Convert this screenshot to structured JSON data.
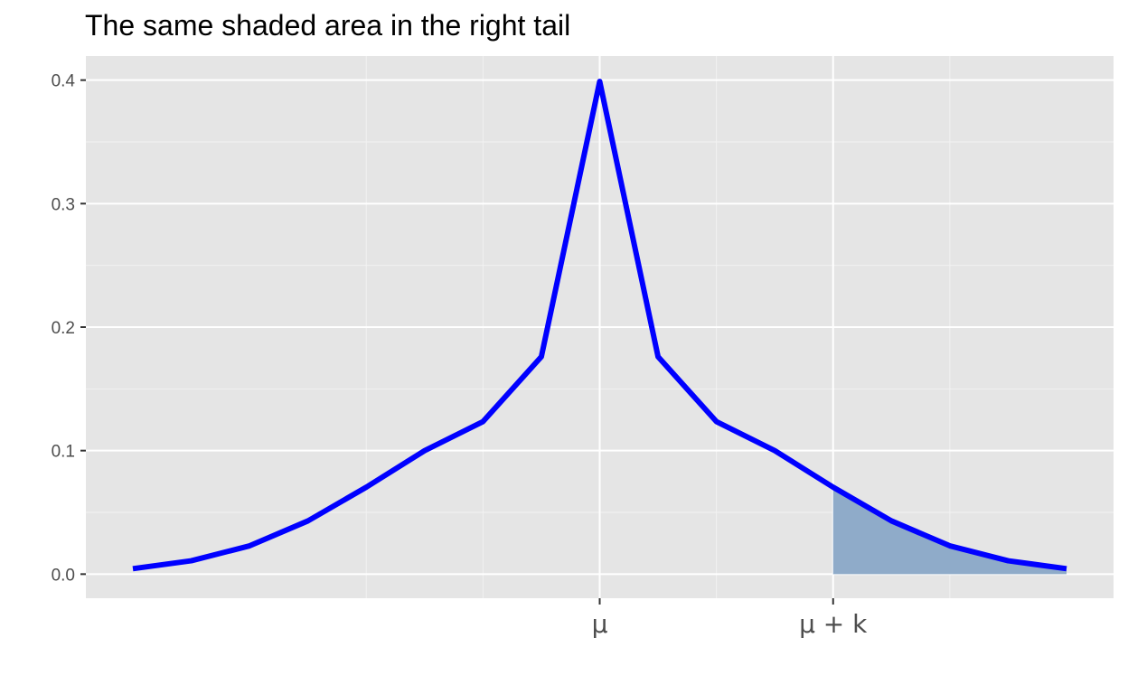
{
  "chart_data": {
    "type": "area",
    "title": "The same shaded area in the right tail",
    "xlabel": "",
    "ylabel": "",
    "xlim": [
      -4.0,
      4.0
    ],
    "ylim": [
      -0.0195,
      0.4195
    ],
    "grid": true,
    "legend": "none",
    "y_ticks": [
      {
        "value": 0.0,
        "label": "0.0"
      },
      {
        "value": 0.1,
        "label": "0.1"
      },
      {
        "value": 0.2,
        "label": "0.2"
      },
      {
        "value": 0.3,
        "label": "0.3"
      },
      {
        "value": 0.4,
        "label": "0.4"
      }
    ],
    "x_ticks": [
      {
        "value": 0,
        "label": "μ"
      },
      {
        "value": 2,
        "label": "μ + k"
      }
    ],
    "x_minor_gridlines": [
      -2,
      -1,
      1,
      3
    ],
    "series": [
      {
        "type": "line",
        "color": "#0000ff",
        "x": [
          -4.0,
          -3.5,
          -3.0,
          -2.5,
          -2.0,
          -1.5,
          -1.0,
          -0.5,
          0.0,
          0.5,
          1.0,
          1.5,
          2.0,
          2.5,
          3.0,
          3.5,
          4.0
        ],
        "y": [
          0.0044,
          0.0108,
          0.0229,
          0.0431,
          0.0704,
          0.1,
          0.1235,
          0.176,
          0.3989,
          0.176,
          0.1235,
          0.1,
          0.0704,
          0.0431,
          0.0229,
          0.0108,
          0.0044
        ]
      },
      {
        "type": "area",
        "color": "#8fabc9",
        "x": [
          2.0,
          2.5,
          3.0,
          3.5,
          4.0
        ],
        "y": [
          0.0704,
          0.0431,
          0.0229,
          0.0108,
          0.0044
        ]
      }
    ]
  },
  "colors": {
    "panel_background": "#e5e5e5",
    "grid_major": "#ffffff",
    "grid_minor": "#f2f2f2",
    "curve": "#0000ff",
    "shade": "#8fabc9",
    "tick_text": "#4d4d4d",
    "tick_mark": "#333333"
  }
}
